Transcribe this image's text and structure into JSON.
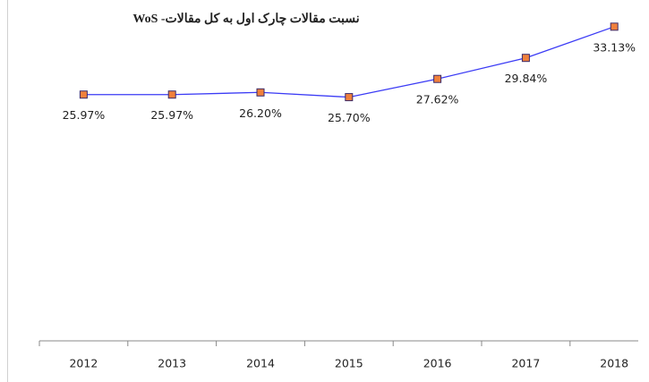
{
  "chart_data": {
    "type": "line",
    "title": "نسبت مقالات چارک اول به کل مقالات- WoS",
    "categories": [
      "2012",
      "2013",
      "2014",
      "2015",
      "2016",
      "2017",
      "2018"
    ],
    "values": [
      25.97,
      25.97,
      26.2,
      25.7,
      27.62,
      29.84,
      33.13
    ],
    "value_labels": [
      "25.97%",
      "25.97%",
      "26.20%",
      "25.70%",
      "27.62%",
      "29.84%",
      "33.13%"
    ],
    "color": "#3b3bf5",
    "marker_color": "#f0803c",
    "ylim": [
      0,
      35
    ]
  }
}
